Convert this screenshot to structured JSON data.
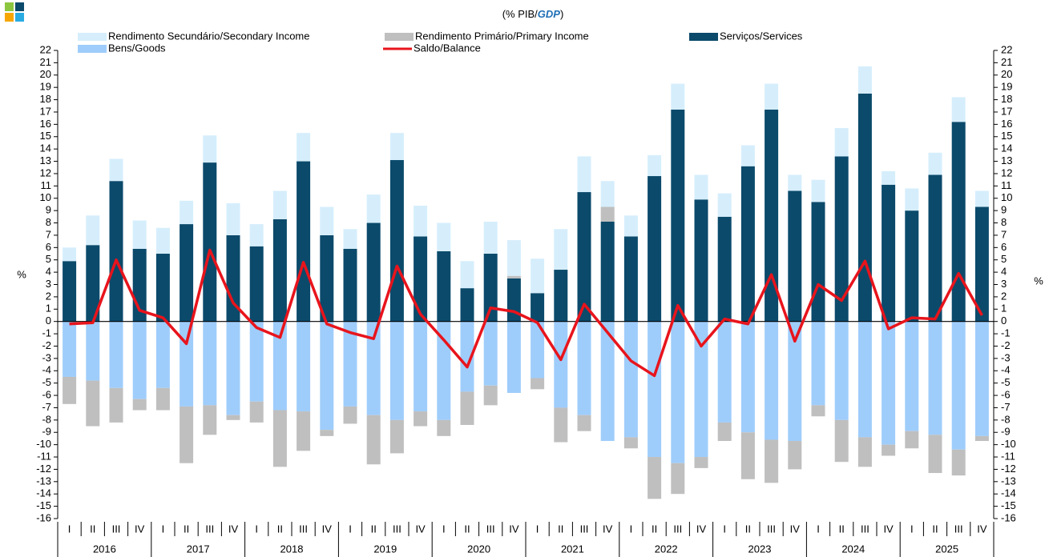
{
  "chart_data": {
    "type": "bar",
    "stacked": true,
    "title_parts": [
      "(% PIB/",
      "GDP",
      ")"
    ],
    "y_label": "%",
    "y2_label": "%",
    "categories": [
      "I",
      "II",
      "III",
      "IV",
      "I",
      "II",
      "III",
      "IV",
      "I",
      "II",
      "III",
      "IV",
      "I",
      "II",
      "III",
      "IV",
      "I",
      "II",
      "III",
      "IV",
      "I",
      "II",
      "III",
      "IV",
      "I",
      "II",
      "III",
      "IV",
      "I",
      "II",
      "III",
      "IV",
      "I",
      "II",
      "III",
      "IV",
      "I",
      "II",
      "III",
      "IV"
    ],
    "years": [
      "2016",
      "2017",
      "2018",
      "2019",
      "2020",
      "2021",
      "2022",
      "2023",
      "2024",
      "2025"
    ],
    "series": [
      {
        "name": "Rendimento Secundário/Secondary Income",
        "color": "#d6eefc",
        "type": "bar",
        "values": [
          1.1,
          2.4,
          1.8,
          2.3,
          2.1,
          1.9,
          2.2,
          2.6,
          1.8,
          2.3,
          2.3,
          2.3,
          1.6,
          2.3,
          2.2,
          2.5,
          2.3,
          2.2,
          2.6,
          2.9,
          2.8,
          3.3,
          2.9,
          2.1,
          1.7,
          1.7,
          2.1,
          2.0,
          1.9,
          1.7,
          2.1,
          1.3,
          1.8,
          2.3,
          2.2,
          1.1,
          1.8,
          1.8,
          2.0,
          1.3
        ]
      },
      {
        "name": "Rendimento Primário/Primary Income",
        "color": "#bfbfbf",
        "type": "bar",
        "values": [
          -2.2,
          -3.7,
          -2.8,
          -0.9,
          -1.8,
          -4.6,
          -2.4,
          -0.4,
          -1.7,
          -4.6,
          -3.2,
          -0.5,
          -1.4,
          -4.0,
          -2.7,
          -1.2,
          -1.3,
          -2.7,
          -1.6,
          0.2,
          -0.9,
          -2.8,
          -1.3,
          1.2,
          -0.9,
          -3.4,
          -2.5,
          -0.9,
          -1.5,
          -3.8,
          -3.5,
          -2.3,
          -0.9,
          -3.4,
          -2.4,
          -0.9,
          -1.4,
          -3.1,
          -2.1,
          -0.4
        ]
      },
      {
        "name": "Serviços/Services",
        "color": "#0b4a6b",
        "type": "bar",
        "values": [
          4.9,
          6.2,
          11.4,
          5.9,
          5.5,
          7.9,
          12.9,
          7.0,
          6.1,
          8.3,
          13.0,
          7.0,
          5.9,
          8.0,
          13.1,
          6.9,
          5.7,
          2.7,
          5.5,
          3.5,
          2.3,
          4.2,
          10.5,
          8.1,
          6.9,
          11.8,
          17.2,
          9.9,
          8.5,
          12.6,
          17.2,
          10.6,
          9.7,
          13.4,
          18.5,
          11.1,
          9.0,
          11.9,
          16.2,
          9.3
        ]
      },
      {
        "name": "Bens/Goods",
        "color": "#9fcdfb",
        "type": "bar",
        "values": [
          -4.5,
          -4.8,
          -5.4,
          -6.3,
          -5.4,
          -6.9,
          -6.8,
          -7.6,
          -6.5,
          -7.2,
          -7.3,
          -8.8,
          -6.9,
          -7.6,
          -8.0,
          -7.3,
          -8.0,
          -5.7,
          -5.2,
          -5.8,
          -4.6,
          -7.0,
          -7.6,
          -9.7,
          -9.4,
          -11.0,
          -11.5,
          -11.0,
          -8.2,
          -9.0,
          -9.6,
          -9.7,
          -6.8,
          -8.0,
          -9.4,
          -10.0,
          -8.9,
          -9.2,
          -10.4,
          -9.3
        ]
      },
      {
        "name": "Saldo/Balance",
        "color": "#e8141c",
        "type": "line",
        "values": [
          -0.2,
          -0.1,
          5.0,
          0.9,
          0.3,
          -1.8,
          5.8,
          1.5,
          -0.5,
          -1.3,
          4.8,
          -0.2,
          -0.9,
          -1.4,
          4.5,
          0.6,
          -1.5,
          -3.7,
          1.1,
          0.8,
          -0.1,
          -3.1,
          1.4,
          -0.9,
          -3.2,
          -4.4,
          1.3,
          -2.0,
          0.2,
          -0.2,
          3.8,
          -1.6,
          3.0,
          1.7,
          4.9,
          -0.6,
          0.3,
          0.2,
          3.9,
          0.5
        ]
      }
    ],
    "ylim": [
      -16,
      22
    ],
    "yticks": [
      -16,
      -15,
      -14,
      -13,
      -12,
      -11,
      -10,
      -9,
      -8,
      -7,
      -6,
      -5,
      -4,
      -3,
      -2,
      -1,
      0,
      1,
      2,
      3,
      4,
      5,
      6,
      7,
      8,
      9,
      10,
      11,
      12,
      13,
      14,
      15,
      16,
      17,
      18,
      19,
      20,
      21,
      22
    ],
    "y2lim": [
      -16,
      22
    ],
    "y2ticks": [
      -16,
      -15,
      -14,
      -13,
      -12,
      -11,
      -10,
      -9,
      -8,
      -7,
      -6,
      -5,
      -4,
      -3,
      -2,
      -1,
      0,
      1,
      2,
      3,
      4,
      5,
      6,
      7,
      8,
      9,
      10,
      11,
      12,
      13,
      14,
      15,
      16,
      17,
      18,
      19,
      20,
      21,
      22
    ]
  }
}
